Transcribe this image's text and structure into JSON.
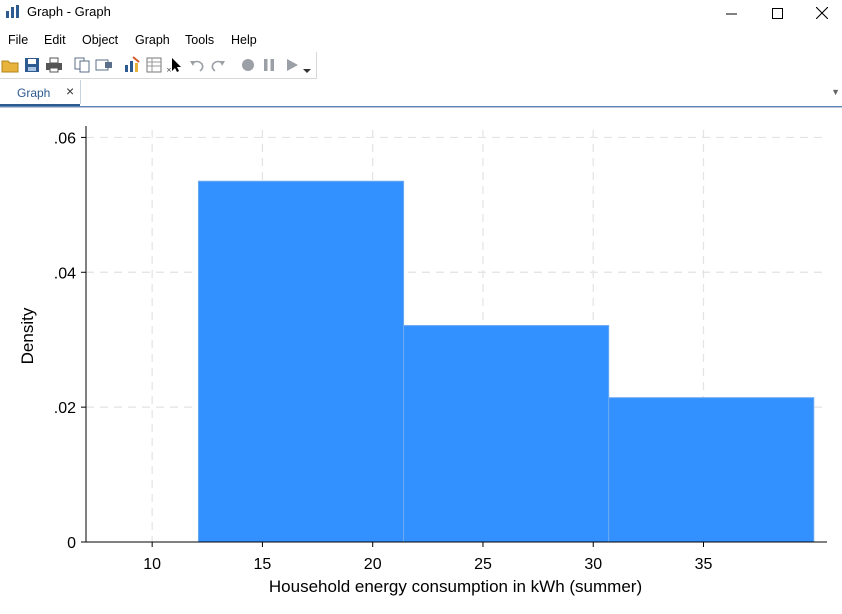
{
  "window": {
    "title": "Graph - Graph",
    "minimize_icon": "minimize-icon",
    "maximize_icon": "maximize-icon",
    "close_icon": "close-icon"
  },
  "menu": [
    "File",
    "Edit",
    "Object",
    "Graph",
    "Tools",
    "Help"
  ],
  "toolbar": [
    "open-icon",
    "save-icon",
    "print-icon",
    "copy-icon",
    "rename-icon",
    "graph-editor-icon",
    "data-editor-icon",
    "pointer-icon",
    "undo-icon",
    "redo-icon",
    "record-icon",
    "pause-icon",
    "play-icon"
  ],
  "tabs": [
    {
      "label": "Graph",
      "close": "×"
    }
  ],
  "colors": {
    "bar": "#3391ff",
    "tab_accent": "#2d5a8f"
  },
  "chart_data": {
    "type": "bar",
    "histogram": true,
    "bins": [
      {
        "x0": 12.1,
        "x1": 21.4,
        "value": 0.0535
      },
      {
        "x0": 21.4,
        "x1": 30.7,
        "value": 0.0321
      },
      {
        "x0": 30.7,
        "x1": 40.0,
        "value": 0.0214
      }
    ],
    "xlabel": "Household energy consumption in kWh (summer)",
    "ylabel": "Density",
    "xticks": [
      10,
      15,
      20,
      25,
      30,
      35
    ],
    "xtick_labels": [
      "10",
      "15",
      "20",
      "25",
      "30",
      "35"
    ],
    "yticks": [
      0,
      0.02,
      0.04,
      0.06
    ],
    "ytick_labels": [
      "0",
      ".02",
      ".04",
      ".06"
    ],
    "xlim": [
      7,
      40.6
    ],
    "ylim": [
      0,
      0.0611
    ],
    "grid": true
  }
}
